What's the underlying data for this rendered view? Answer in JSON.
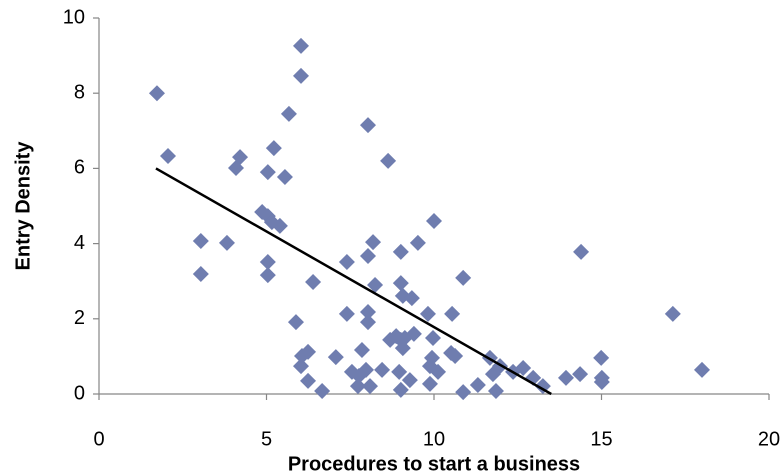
{
  "chart_data": {
    "type": "scatter",
    "x_label": "Procedures to start a business",
    "y_label": "Entry Density",
    "xlim": [
      0,
      20
    ],
    "xticks": [
      0,
      5,
      10,
      15,
      20
    ],
    "ylim": [
      0,
      10
    ],
    "yticks": [
      0,
      2,
      4,
      6,
      8,
      10
    ],
    "grid": false,
    "color": "#6f7daf",
    "x": [
      1.73,
      2.06,
      3.04,
      3.04,
      3.82,
      4.09,
      4.21,
      4.87,
      5.04,
      5.16,
      5.4,
      5.04,
      5.22,
      5.55,
      5.67,
      5.04,
      5.04,
      6.03,
      6.03,
      5.88,
      6.06,
      6.24,
      6.03,
      6.24,
      6.39,
      6.66,
      7.07,
      7.4,
      7.4,
      7.55,
      7.73,
      7.76,
      7.85,
      8.03,
      8.03,
      8.18,
      8.03,
      8.03,
      7.97,
      8.09,
      8.24,
      8.45,
      8.63,
      8.69,
      8.87,
      8.96,
      9.01,
      9.01,
      9.07,
      9.01,
      9.07,
      9.13,
      9.01,
      9.28,
      9.34,
      9.4,
      9.52,
      9.82,
      9.88,
      9.88,
      9.94,
      10.0,
      9.97,
      10.12,
      10.51,
      10.63,
      10.54,
      10.87,
      10.87,
      11.31,
      11.67,
      11.76,
      11.85,
      11.97,
      12.36,
      12.66,
      12.96,
      13.25,
      13.94,
      14.36,
      14.39,
      14.99,
      15.01,
      15.01,
      17.13,
      18.0
    ],
    "values": [
      8.0,
      6.33,
      4.07,
      3.19,
      4.02,
      6.01,
      6.3,
      4.84,
      4.73,
      4.57,
      4.47,
      5.9,
      6.54,
      5.77,
      7.45,
      3.51,
      3.16,
      9.26,
      8.46,
      1.91,
      1.01,
      1.12,
      0.74,
      0.35,
      2.98,
      0.08,
      0.98,
      3.51,
      2.13,
      0.59,
      0.21,
      0.48,
      1.17,
      7.15,
      3.67,
      4.04,
      2.18,
      1.91,
      0.64,
      0.21,
      2.9,
      0.64,
      6.2,
      1.44,
      1.54,
      0.59,
      3.78,
      2.95,
      2.61,
      1.44,
      1.22,
      1.49,
      0.11,
      0.37,
      2.55,
      1.6,
      4.02,
      2.13,
      0.74,
      0.27,
      0.96,
      4.6,
      1.49,
      0.59,
      1.09,
      1.01,
      2.13,
      3.09,
      0.05,
      0.24,
      0.96,
      0.53,
      0.08,
      0.74,
      0.59,
      0.69,
      0.43,
      0.21,
      0.43,
      0.53,
      3.78,
      0.96,
      0.32,
      0.43,
      2.13,
      0.64
    ],
    "trendline": {
      "x": [
        1.7,
        13.5
      ],
      "y": [
        6.0,
        0
      ],
      "color": "#000000"
    }
  }
}
